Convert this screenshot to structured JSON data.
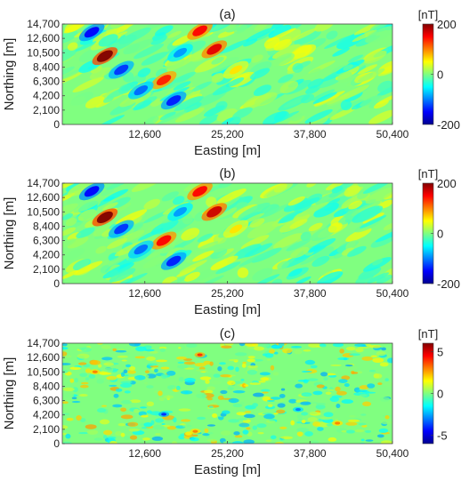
{
  "chart_data": [
    {
      "type": "heatmap",
      "panel_label": "(a)",
      "xlabel": "Easting [m]",
      "ylabel": "Northing [m]",
      "xlim": [
        0,
        50400
      ],
      "ylim": [
        0,
        14700
      ],
      "x_ticks": [
        12600,
        25200,
        37800,
        50400
      ],
      "x_tick_labels": [
        "12,600",
        "25,200",
        "37,800",
        "50,400"
      ],
      "y_ticks": [
        0,
        2100,
        4200,
        6300,
        8400,
        10500,
        12600,
        14700
      ],
      "y_tick_labels": [
        "0",
        "2,100",
        "4,200",
        "6,300",
        "8,400",
        "10,500",
        "12,600",
        "14,700"
      ],
      "colorbar": {
        "unit": "[nT]",
        "min": -200,
        "max": 200,
        "ticks": [
          200,
          0,
          -200
        ],
        "tick_labels": [
          "200",
          "0",
          "-200"
        ],
        "colormap": "jet"
      },
      "features": [
        {
          "x": 6500,
          "y": 10000,
          "value": 200
        },
        {
          "x": 4500,
          "y": 13500,
          "value": -150
        },
        {
          "x": 9000,
          "y": 8000,
          "value": -130
        },
        {
          "x": 23200,
          "y": 11000,
          "value": 160
        },
        {
          "x": 21000,
          "y": 13700,
          "value": 150
        },
        {
          "x": 15500,
          "y": 6500,
          "value": 140
        },
        {
          "x": 17000,
          "y": 3500,
          "value": -140
        },
        {
          "x": 12000,
          "y": 5000,
          "value": -110
        },
        {
          "x": 18000,
          "y": 10500,
          "value": -90
        },
        {
          "x": 26500,
          "y": 8000,
          "value": 60
        }
      ]
    },
    {
      "type": "heatmap",
      "panel_label": "(b)",
      "xlabel": "Easting [m]",
      "ylabel": "Northing [m]",
      "xlim": [
        0,
        50400
      ],
      "ylim": [
        0,
        14700
      ],
      "x_ticks": [
        12600,
        25200,
        37800,
        50400
      ],
      "x_tick_labels": [
        "12,600",
        "25,200",
        "37,800",
        "50,400"
      ],
      "y_ticks": [
        0,
        2100,
        4200,
        6300,
        8400,
        10500,
        12600,
        14700
      ],
      "y_tick_labels": [
        "0",
        "2,100",
        "4,200",
        "6,300",
        "8,400",
        "10,500",
        "12,600",
        "14,700"
      ],
      "colorbar": {
        "unit": "[nT]",
        "min": -200,
        "max": 200,
        "ticks": [
          200,
          0,
          -200
        ],
        "tick_labels": [
          "200",
          "0",
          "-200"
        ],
        "colormap": "jet"
      },
      "features": [
        {
          "x": 6500,
          "y": 9700,
          "value": 200
        },
        {
          "x": 4500,
          "y": 13500,
          "value": -150
        },
        {
          "x": 9000,
          "y": 8000,
          "value": -130
        },
        {
          "x": 23200,
          "y": 10500,
          "value": 170
        },
        {
          "x": 21000,
          "y": 13500,
          "value": 150
        },
        {
          "x": 15500,
          "y": 6300,
          "value": 150
        },
        {
          "x": 17000,
          "y": 3300,
          "value": -140
        },
        {
          "x": 12000,
          "y": 5000,
          "value": -110
        },
        {
          "x": 18000,
          "y": 10500,
          "value": -90
        },
        {
          "x": 26500,
          "y": 8000,
          "value": 60
        }
      ]
    },
    {
      "type": "heatmap",
      "panel_label": "(c)",
      "xlabel": "Easting [m]",
      "ylabel": "Northing [m]",
      "xlim": [
        0,
        50400
      ],
      "ylim": [
        0,
        14700
      ],
      "x_ticks": [
        12600,
        25200,
        37800,
        50400
      ],
      "x_tick_labels": [
        "12,600",
        "25,200",
        "37,800",
        "50,400"
      ],
      "y_ticks": [
        0,
        2100,
        4200,
        6300,
        8400,
        10500,
        12600,
        14700
      ],
      "y_tick_labels": [
        "0",
        "2,100",
        "4,200",
        "6,300",
        "8,400",
        "10,500",
        "12,600",
        "14,700"
      ],
      "colorbar": {
        "unit": "[nT]",
        "min": -6,
        "max": 6,
        "ticks": [
          5,
          0,
          -5
        ],
        "tick_labels": [
          "5",
          "0",
          "-5"
        ],
        "colormap": "jet"
      },
      "features": [
        {
          "x": 15500,
          "y": 4300,
          "value": -4
        },
        {
          "x": 20300,
          "y": 1800,
          "value": 3
        },
        {
          "x": 21000,
          "y": 13000,
          "value": 4
        },
        {
          "x": 42000,
          "y": 3000,
          "value": 3
        },
        {
          "x": 36000,
          "y": 5000,
          "value": -3
        },
        {
          "x": 5000,
          "y": 10500,
          "value": 3
        }
      ]
    }
  ]
}
